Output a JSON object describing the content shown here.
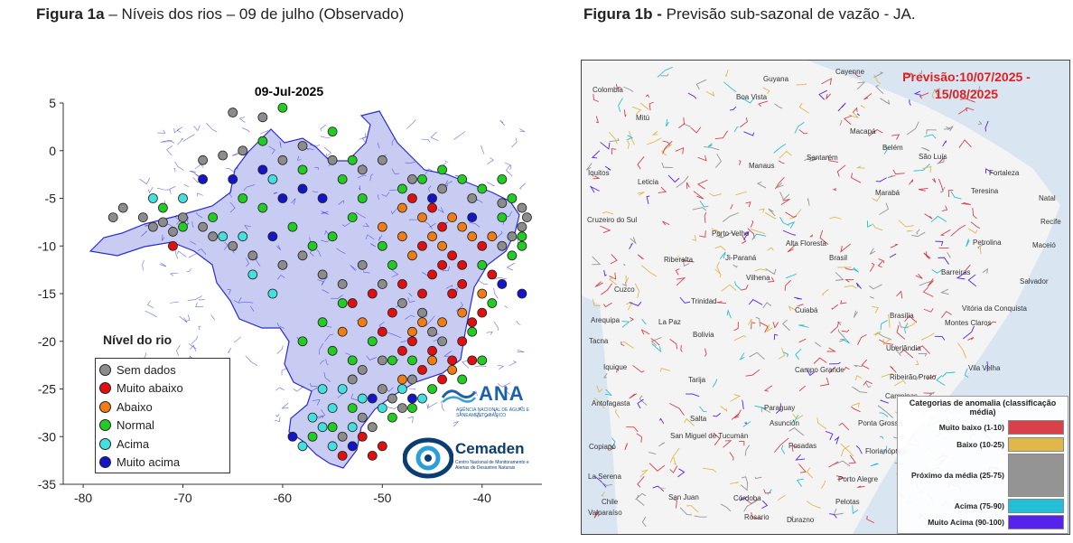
{
  "figure_a": {
    "title_bold": "Figura 1a",
    "title_rest": " – Níveis dos rios – 09 de julho (Observado)",
    "map_date": "09-Jul-2025",
    "legend_title": "Nível do rio",
    "legend": [
      {
        "label": "Sem dados",
        "color": "#8c8c8c"
      },
      {
        "label": "Muito abaixo",
        "color": "#e01010"
      },
      {
        "label": "Abaixo",
        "color": "#f07c14"
      },
      {
        "label": "Normal",
        "color": "#22cc22"
      },
      {
        "label": "Acima",
        "color": "#44e0e0"
      },
      {
        "label": "Muito acima",
        "color": "#1515c8"
      }
    ],
    "logo_ana": "ANA",
    "logo_ana_sub": "AGÊNCIA NACIONAL DE ÁGUAS E SANEAMENTO BÁSICO",
    "logo_cemaden": "Cemaden",
    "logo_cemaden_sub": "Centro Nacional de Monitoramento e Alertas de Desastres Naturais"
  },
  "chart_data": [
    {
      "type": "scatter",
      "title": "09-Jul-2025",
      "xlim": [
        -82,
        -34
      ],
      "ylim": [
        -35,
        5
      ],
      "x_ticks": [
        -80,
        -70,
        -60,
        -50,
        -40
      ],
      "y_ticks": [
        5,
        0,
        -5,
        -10,
        -15,
        -20,
        -25,
        -30,
        -35
      ],
      "legend_title": "Nível do rio",
      "legend_position": "bottom-left",
      "series": [
        {
          "name": "Sem dados",
          "points": [
            [
              -65,
              4
            ],
            [
              -62,
              3.5
            ],
            [
              -68,
              -1
            ],
            [
              -66,
              -0.5
            ],
            [
              -64,
              0
            ],
            [
              -60,
              -1
            ],
            [
              -58,
              0.5
            ],
            [
              -55,
              -1
            ],
            [
              -52,
              -2
            ],
            [
              -50,
              -1
            ],
            [
              -47,
              -3
            ],
            [
              -44,
              -4
            ],
            [
              -41,
              -5
            ],
            [
              -38,
              -5.5
            ],
            [
              -36,
              -6
            ],
            [
              -35.5,
              -7
            ],
            [
              -36,
              -8
            ],
            [
              -37,
              -9
            ],
            [
              -38,
              -10
            ],
            [
              -76,
              -6
            ],
            [
              -77,
              -7
            ],
            [
              -74,
              -7
            ],
            [
              -73,
              -8
            ],
            [
              -72,
              -7.5
            ],
            [
              -71,
              -8.5
            ],
            [
              -70,
              -7
            ],
            [
              -68,
              -8
            ],
            [
              -67,
              -9
            ],
            [
              -65,
              -10
            ],
            [
              -63,
              -11
            ],
            [
              -60,
              -12
            ],
            [
              -58,
              -11
            ],
            [
              -56,
              -13
            ],
            [
              -54,
              -14
            ],
            [
              -52,
              -12
            ],
            [
              -50,
              -14
            ],
            [
              -48,
              -16
            ],
            [
              -46,
              -17
            ],
            [
              -45,
              -19
            ],
            [
              -44,
              -20
            ],
            [
              -50,
              -22
            ],
            [
              -52,
              -23
            ],
            [
              -53,
              -24
            ],
            [
              -50,
              -25
            ],
            [
              -49,
              -26
            ],
            [
              -48,
              -27
            ],
            [
              -52,
              -28
            ],
            [
              -51,
              -29
            ],
            [
              -54,
              -30
            ],
            [
              -47,
              -24
            ]
          ]
        },
        {
          "name": "Muito abaixo",
          "points": [
            [
              -47,
              -5
            ],
            [
              -45,
              -6
            ],
            [
              -44,
              -8
            ],
            [
              -46,
              -10
            ],
            [
              -44,
              -12
            ],
            [
              -43,
              -11
            ],
            [
              -42,
              -12
            ],
            [
              -45,
              -13
            ],
            [
              -43,
              -15
            ],
            [
              -42,
              -14
            ],
            [
              -46,
              -15
            ],
            [
              -48,
              -14
            ],
            [
              -49,
              -17
            ],
            [
              -50,
              -19
            ],
            [
              -47,
              -20
            ],
            [
              -45,
              -21
            ],
            [
              -43,
              -22
            ],
            [
              -42,
              -20
            ],
            [
              -41,
              -18
            ],
            [
              -40,
              -17
            ],
            [
              -51,
              -15
            ],
            [
              -53,
              -16
            ],
            [
              -48,
              -21
            ],
            [
              -46,
              -23
            ],
            [
              -44,
              -24
            ],
            [
              -41,
              -22
            ],
            [
              -50,
              -31
            ],
            [
              -52,
              -30
            ],
            [
              -54,
              -32
            ],
            [
              -51,
              -32
            ],
            [
              -39,
              -13
            ],
            [
              -40,
              -10
            ],
            [
              -71,
              -10
            ]
          ]
        },
        {
          "name": "Abaixo",
          "points": [
            [
              -48,
              -6
            ],
            [
              -46,
              -7
            ],
            [
              -43,
              -7
            ],
            [
              -42,
              -8
            ],
            [
              -41,
              -9
            ],
            [
              -44,
              -10
            ],
            [
              -45,
              -9
            ],
            [
              -47,
              -11
            ],
            [
              -48,
              -9
            ],
            [
              -50,
              -8
            ],
            [
              -46,
              -18
            ],
            [
              -44,
              -18
            ],
            [
              -42,
              -17
            ],
            [
              -47,
              -19
            ],
            [
              -45,
              -22
            ],
            [
              -43,
              -23
            ],
            [
              -52,
              -18
            ],
            [
              -54,
              -19
            ],
            [
              -39,
              -9
            ],
            [
              -40,
              -15
            ],
            [
              -48,
              -24
            ]
          ]
        },
        {
          "name": "Normal",
          "points": [
            [
              -60,
              4.5
            ],
            [
              -62,
              1
            ],
            [
              -58,
              -2
            ],
            [
              -54,
              -3
            ],
            [
              -52,
              -5
            ],
            [
              -48,
              -4
            ],
            [
              -46,
              -3
            ],
            [
              -44,
              -2
            ],
            [
              -42,
              -3
            ],
            [
              -40,
              -4
            ],
            [
              -37,
              -5
            ],
            [
              -38,
              -7
            ],
            [
              -36,
              -9
            ],
            [
              -37,
              -11
            ],
            [
              -40,
              -12
            ],
            [
              -72,
              -6
            ],
            [
              -70,
              -8
            ],
            [
              -67,
              -7
            ],
            [
              -64,
              -5
            ],
            [
              -62,
              -6
            ],
            [
              -59,
              -8
            ],
            [
              -57,
              -10
            ],
            [
              -55,
              -9
            ],
            [
              -53,
              -7
            ],
            [
              -50,
              -10
            ],
            [
              -49,
              -12
            ],
            [
              -54,
              -16
            ],
            [
              -56,
              -18
            ],
            [
              -58,
              -20
            ],
            [
              -55,
              -21
            ],
            [
              -53,
              -22
            ],
            [
              -51,
              -20
            ],
            [
              -49,
              -22
            ],
            [
              -47,
              -22
            ],
            [
              -45,
              -25
            ],
            [
              -47,
              -27
            ],
            [
              -49,
              -28
            ],
            [
              -53,
              -27
            ],
            [
              -55,
              -29
            ],
            [
              -57,
              -30
            ],
            [
              -42,
              -24
            ],
            [
              -40,
              -22
            ],
            [
              -41,
              -19
            ],
            [
              -39,
              -16
            ],
            [
              -36,
              -10
            ],
            [
              -38,
              -3
            ],
            [
              -55,
              2
            ],
            [
              -53,
              -1
            ]
          ]
        },
        {
          "name": "Acima",
          "points": [
            [
              -73,
              -5
            ],
            [
              -70,
              -5
            ],
            [
              -66,
              -9
            ],
            [
              -64,
              -9
            ],
            [
              -61,
              -3
            ],
            [
              -63,
              -13
            ],
            [
              -61,
              -15
            ],
            [
              -56,
              -25
            ],
            [
              -54,
              -25
            ],
            [
              -52,
              -26
            ],
            [
              -50,
              -27
            ],
            [
              -48,
              -25
            ],
            [
              -55,
              -27
            ],
            [
              -57,
              -28
            ],
            [
              -56,
              -29
            ],
            [
              -58,
              -31
            ],
            [
              -55,
              -31
            ],
            [
              -53,
              -29
            ],
            [
              -46,
              -26
            ]
          ]
        },
        {
          "name": "Muito acima",
          "points": [
            [
              -68,
              -3
            ],
            [
              -65,
              -3
            ],
            [
              -62,
              -2
            ],
            [
              -60,
              -5
            ],
            [
              -58,
              -4
            ],
            [
              -56,
              -5
            ],
            [
              -45,
              -5
            ],
            [
              -41,
              -7
            ],
            [
              -38,
              -14
            ],
            [
              -36,
              -15
            ],
            [
              -47,
              -26
            ],
            [
              -51,
              -26
            ],
            [
              -53,
              -31
            ],
            [
              -59,
              -30
            ],
            [
              -61,
              -9
            ]
          ]
        }
      ]
    }
  ],
  "figure_b": {
    "title_bold": "Figura 1b -",
    "title_rest": " Previsão sub-sazonal de vazão - JA.",
    "forecast_line1": "Previsão:10/07/2025 -",
    "forecast_line2": "15/08/2025",
    "legend_title": "Categorias de anomalia (classificação média)",
    "legend": [
      {
        "label": "Muito baixo (1-10)",
        "color": "#d9404a"
      },
      {
        "label": "Baixo (10-25)",
        "color": "#e0b84a"
      },
      {
        "label": "Próximo da média (25-75)",
        "color": "#949494"
      },
      {
        "label": "Acima (75-90)",
        "color": "#22c0d8"
      },
      {
        "label": "Muito Acima (90-100)",
        "color": "#5522ee"
      }
    ],
    "cities": [
      {
        "name": "Cayenne"
      },
      {
        "name": "Guyana"
      },
      {
        "name": "Colombia"
      },
      {
        "name": "Boa Vista"
      },
      {
        "name": "Macapá"
      },
      {
        "name": "Mitú"
      },
      {
        "name": "Belém"
      },
      {
        "name": "São Luís"
      },
      {
        "name": "Santarém"
      },
      {
        "name": "Manaus"
      },
      {
        "name": "Fortaleza"
      },
      {
        "name": "Iquitos"
      },
      {
        "name": "Leticia"
      },
      {
        "name": "Teresina"
      },
      {
        "name": "Natal"
      },
      {
        "name": "Marabá"
      },
      {
        "name": "Cruzeiro do Sul"
      },
      {
        "name": "Recife"
      },
      {
        "name": "Porto Velho"
      },
      {
        "name": "Petrolina"
      },
      {
        "name": "Maceió"
      },
      {
        "name": "Alta Floresta"
      },
      {
        "name": "Riberalta"
      },
      {
        "name": "Ji-Paraná"
      },
      {
        "name": "Brasil"
      },
      {
        "name": "Barreiras"
      },
      {
        "name": "Salvador"
      },
      {
        "name": "Vilhena"
      },
      {
        "name": "Cuzco"
      },
      {
        "name": "Trinidad"
      },
      {
        "name": "Vitória da Conquista"
      },
      {
        "name": "Cuiabá"
      },
      {
        "name": "Brasília"
      },
      {
        "name": "Arequipa"
      },
      {
        "name": "La Paz"
      },
      {
        "name": "Montes Claros"
      },
      {
        "name": "Bolivia"
      },
      {
        "name": "Tacna"
      },
      {
        "name": "Uberlândia"
      },
      {
        "name": "Iquique"
      },
      {
        "name": "Campo Grande"
      },
      {
        "name": "Ribeirão Preto"
      },
      {
        "name": "Vila Velha"
      },
      {
        "name": "Tarija"
      },
      {
        "name": "Campinas"
      },
      {
        "name": "Antofagasta"
      },
      {
        "name": "Paraguay"
      },
      {
        "name": "Salta"
      },
      {
        "name": "Asunción"
      },
      {
        "name": "Ponta Grossa"
      },
      {
        "name": "San Miguel de Tucumán"
      },
      {
        "name": "Copiapó"
      },
      {
        "name": "Posadas"
      },
      {
        "name": "Florianópolis"
      },
      {
        "name": "La Serena"
      },
      {
        "name": "Córdoba"
      },
      {
        "name": "Porto Alegre"
      },
      {
        "name": "Chile"
      },
      {
        "name": "San Juan"
      },
      {
        "name": "Valparaíso"
      },
      {
        "name": "Rosario"
      },
      {
        "name": "Durazno"
      },
      {
        "name": "Pelotas"
      }
    ]
  }
}
